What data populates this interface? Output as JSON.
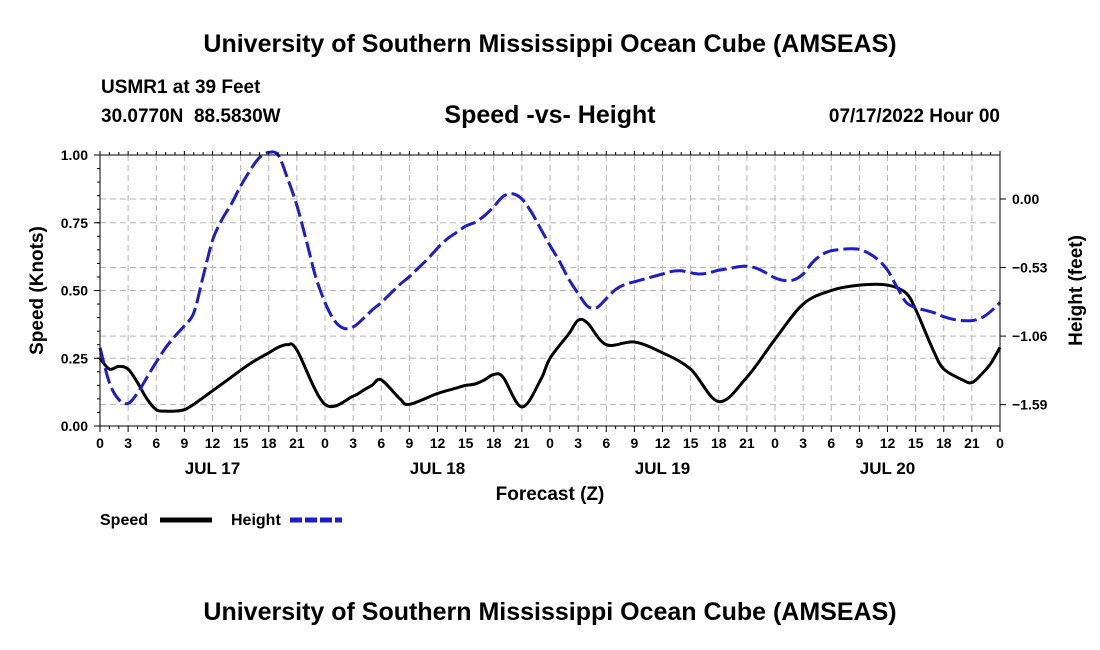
{
  "header": {
    "title": "University of Southern Mississippi Ocean Cube (AMSEAS)",
    "station": "USMR1 at 39 Feet",
    "coords": "30.0770N  88.5830W",
    "subtitle": "Speed -vs- Height",
    "date": "07/17/2022 Hour 00"
  },
  "footer": {
    "title": "University of Southern Mississippi Ocean Cube (AMSEAS)"
  },
  "chart_data": {
    "type": "line",
    "xlabel": "Forecast (Z)",
    "ylabel": "Speed (Knots)",
    "y2label": "Height (feet)",
    "xlim": [
      0,
      96
    ],
    "ylim": [
      0,
      1
    ],
    "y2lim": [
      -1.755,
      0.34
    ],
    "x_ticks": [
      0,
      3,
      6,
      9,
      12,
      15,
      18,
      21,
      24,
      27,
      30,
      33,
      36,
      39,
      42,
      45,
      48,
      51,
      54,
      57,
      60,
      63,
      66,
      69,
      72,
      75,
      78,
      81,
      84,
      87,
      90,
      93,
      96
    ],
    "x_tick_labels": [
      "0",
      "3",
      "6",
      "9",
      "12",
      "15",
      "18",
      "21",
      "0",
      "3",
      "6",
      "9",
      "12",
      "15",
      "18",
      "21",
      "0",
      "3",
      "6",
      "9",
      "12",
      "15",
      "18",
      "21",
      "0",
      "3",
      "6",
      "9",
      "12",
      "15",
      "18",
      "21",
      "0"
    ],
    "day_labels": [
      {
        "x": 12,
        "label": "JUL 17"
      },
      {
        "x": 36,
        "label": "JUL 18"
      },
      {
        "x": 60,
        "label": "JUL 19"
      },
      {
        "x": 84,
        "label": "JUL 20"
      }
    ],
    "y_ticks": [
      0,
      0.25,
      0.5,
      0.75,
      1.0
    ],
    "y_tick_labels": [
      "0.00",
      "0.25",
      "0.50",
      "0.75",
      "1.00"
    ],
    "y2_ticks": [
      0.0,
      -0.53,
      -1.06,
      -1.59
    ],
    "y2_tick_labels": [
      "0.00",
      "−0.53",
      "−1.06",
      "−1.59"
    ],
    "series": [
      {
        "name": "Speed",
        "color": "#000000",
        "axis": "left",
        "x": [
          0,
          1,
          2,
          3,
          4,
          5,
          6,
          7,
          8,
          9,
          10,
          12,
          14,
          16,
          18,
          19,
          20,
          21,
          24,
          27,
          28,
          29,
          30,
          32,
          33,
          36,
          38,
          39,
          40,
          41,
          42,
          43,
          45,
          47,
          48,
          50,
          51,
          52,
          54,
          57,
          60,
          63,
          66,
          69,
          72,
          75,
          78,
          81,
          84,
          86,
          87,
          88,
          89,
          90,
          92,
          93,
          94,
          95,
          96
        ],
        "values": [
          0.25,
          0.21,
          0.22,
          0.21,
          0.16,
          0.1,
          0.06,
          0.055,
          0.055,
          0.06,
          0.08,
          0.13,
          0.18,
          0.23,
          0.27,
          0.29,
          0.3,
          0.28,
          0.08,
          0.11,
          0.13,
          0.15,
          0.17,
          0.1,
          0.08,
          0.12,
          0.14,
          0.15,
          0.155,
          0.17,
          0.19,
          0.18,
          0.07,
          0.17,
          0.25,
          0.34,
          0.39,
          0.38,
          0.3,
          0.31,
          0.27,
          0.21,
          0.09,
          0.18,
          0.32,
          0.45,
          0.5,
          0.52,
          0.52,
          0.49,
          0.43,
          0.35,
          0.27,
          0.21,
          0.17,
          0.16,
          0.19,
          0.23,
          0.29
        ]
      },
      {
        "name": "Height",
        "color": "#1e1ec8",
        "axis": "right",
        "x": [
          0,
          1,
          2,
          3,
          4,
          5,
          6,
          7,
          8,
          9,
          10,
          11,
          12,
          13,
          14,
          15,
          16,
          17,
          18,
          19,
          20,
          21,
          22,
          23,
          24,
          25,
          26,
          27,
          28,
          29,
          30,
          31,
          32,
          33,
          34,
          35,
          36,
          37,
          38,
          39,
          40,
          41,
          42,
          43,
          44,
          45,
          46,
          47,
          48,
          49,
          50,
          51,
          52,
          53,
          54,
          55,
          56,
          57,
          58,
          59,
          60,
          61,
          62,
          63,
          64,
          65,
          66,
          67,
          68,
          69,
          70,
          71,
          72,
          73,
          74,
          75,
          76,
          77,
          78,
          79,
          80,
          81,
          82,
          83,
          84,
          85,
          86,
          87,
          88,
          89,
          90,
          91,
          92,
          93,
          94,
          95,
          96
        ],
        "values": [
          -1.15,
          -1.42,
          -1.55,
          -1.58,
          -1.5,
          -1.38,
          -1.26,
          -1.15,
          -1.06,
          -0.98,
          -0.88,
          -0.6,
          -0.32,
          -0.16,
          -0.04,
          0.1,
          0.22,
          0.32,
          0.36,
          0.34,
          0.16,
          -0.05,
          -0.32,
          -0.6,
          -0.8,
          -0.94,
          -1.0,
          -0.99,
          -0.93,
          -0.86,
          -0.8,
          -0.73,
          -0.66,
          -0.6,
          -0.53,
          -0.46,
          -0.38,
          -0.31,
          -0.26,
          -0.21,
          -0.18,
          -0.13,
          -0.06,
          0.02,
          0.04,
          0.0,
          -0.1,
          -0.23,
          -0.36,
          -0.48,
          -0.62,
          -0.73,
          -0.83,
          -0.84,
          -0.77,
          -0.7,
          -0.66,
          -0.64,
          -0.62,
          -0.6,
          -0.58,
          -0.56,
          -0.555,
          -0.57,
          -0.58,
          -0.57,
          -0.55,
          -0.54,
          -0.525,
          -0.52,
          -0.535,
          -0.57,
          -0.61,
          -0.63,
          -0.625,
          -0.58,
          -0.49,
          -0.43,
          -0.4,
          -0.39,
          -0.385,
          -0.39,
          -0.42,
          -0.47,
          -0.55,
          -0.68,
          -0.8,
          -0.84,
          -0.86,
          -0.88,
          -0.91,
          -0.93,
          -0.94,
          -0.94,
          -0.92,
          -0.87,
          -0.8
        ]
      }
    ],
    "legend": {
      "placement": "bottom-left",
      "entries": [
        "Speed",
        "Height"
      ]
    }
  }
}
